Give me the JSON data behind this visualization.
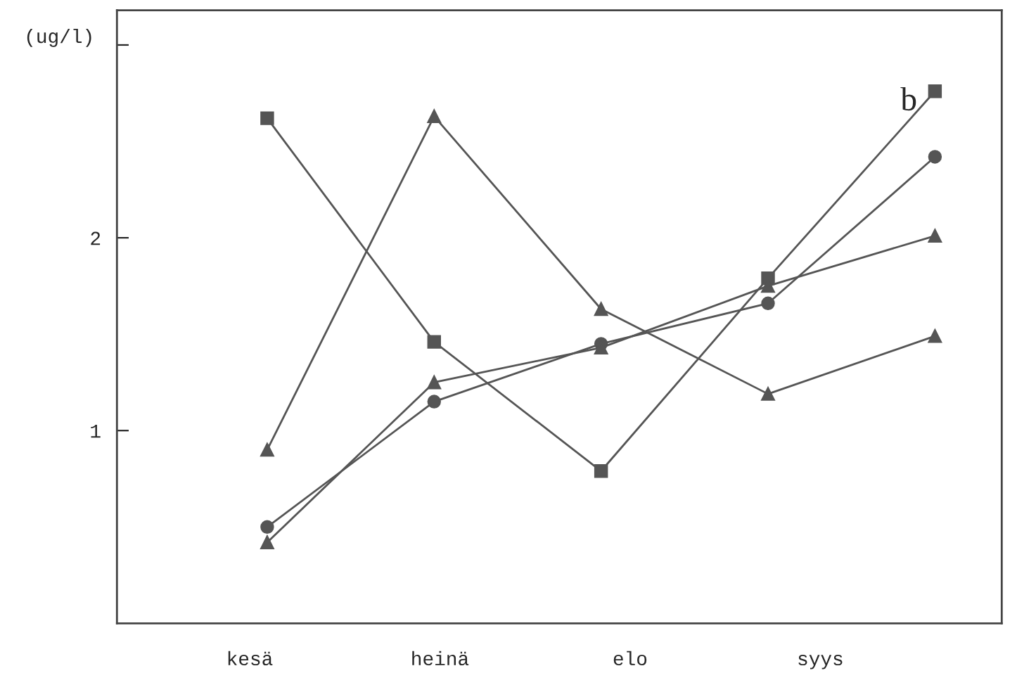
{
  "chart_data": {
    "type": "line",
    "ylabel": "(ug/l)",
    "annotations": [
      "b",
      "kesä",
      "heinä",
      "elo",
      "syys"
    ],
    "categories": [
      null,
      null,
      null,
      null,
      null
    ],
    "series": [
      {
        "color": "#555555",
        "marker": "square",
        "values": [
          2.62,
          1.46,
          0.79,
          1.79,
          2.76
        ]
      },
      {
        "color": "#555555",
        "marker": "triangle",
        "values": [
          0.9,
          2.63,
          1.63,
          1.19,
          1.49
        ]
      },
      {
        "color": "#555555",
        "marker": "circle",
        "values": [
          0.5,
          1.15,
          1.45,
          1.66,
          2.42
        ]
      },
      {
        "color": "#555555",
        "marker": "triangle",
        "values": [
          0.42,
          1.25,
          1.43,
          1.75,
          2.01
        ]
      }
    ],
    "ylim": [
      0,
      3.18
    ],
    "yticks": [
      1,
      2,
      {
        "value": 3,
        "label": null
      }
    ],
    "grid": false,
    "legend": false,
    "line_style": "solid"
  }
}
